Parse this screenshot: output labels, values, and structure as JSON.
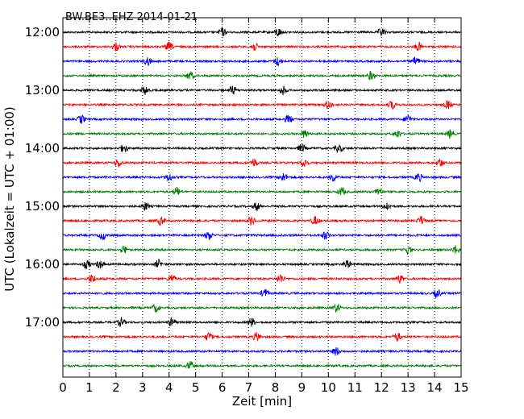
{
  "chart_data": {
    "type": "line",
    "title": "BW.BE3..EHZ 2014-01-21",
    "xlabel": "Zeit  [min]",
    "ylabel": "UTC (Lokalzeit = UTC + 01:00)",
    "xlim": [
      0,
      15
    ],
    "x_ticks": [
      "0",
      "1",
      "2",
      "3",
      "4",
      "5",
      "6",
      "7",
      "8",
      "9",
      "10",
      "11",
      "12",
      "13",
      "14",
      "15"
    ],
    "y_ticks": [
      "12:00",
      "13:00",
      "14:00",
      "15:00",
      "16:00",
      "17:00"
    ],
    "grid_x": true,
    "trace_minutes": 15,
    "colors": [
      "#000000",
      "#ff0000",
      "#0000ff",
      "#008000"
    ],
    "traces": [
      {
        "start": "12:00",
        "color": "#000000",
        "events": [
          6.0,
          8.1,
          12.0
        ]
      },
      {
        "start": "12:15",
        "color": "#ff0000",
        "events": [
          2.0,
          4.0,
          7.2,
          13.4
        ]
      },
      {
        "start": "12:30",
        "color": "#0000ff",
        "events": [
          3.2,
          8.1,
          13.3
        ]
      },
      {
        "start": "12:45",
        "color": "#008000",
        "events": [
          4.8,
          11.6
        ]
      },
      {
        "start": "13:00",
        "color": "#000000",
        "events": [
          3.1,
          6.4,
          8.3
        ]
      },
      {
        "start": "13:15",
        "color": "#ff0000",
        "events": [
          10.0,
          12.4,
          14.5
        ]
      },
      {
        "start": "13:30",
        "color": "#0000ff",
        "events": [
          0.7,
          8.5,
          13.0
        ]
      },
      {
        "start": "13:45",
        "color": "#008000",
        "events": [
          9.1,
          12.6,
          14.6
        ]
      },
      {
        "start": "14:00",
        "color": "#000000",
        "events": [
          2.3,
          9.0,
          10.4
        ]
      },
      {
        "start": "14:15",
        "color": "#ff0000",
        "events": [
          2.1,
          7.2,
          9.1,
          14.2
        ]
      },
      {
        "start": "14:30",
        "color": "#0000ff",
        "events": [
          4.0,
          8.3,
          10.2,
          13.4
        ]
      },
      {
        "start": "14:45",
        "color": "#008000",
        "events": [
          4.3,
          10.5,
          11.9
        ]
      },
      {
        "start": "15:00",
        "color": "#000000",
        "events": [
          3.1,
          7.3,
          12.2
        ]
      },
      {
        "start": "15:15",
        "color": "#ff0000",
        "events": [
          3.7,
          7.1,
          9.5,
          13.5
        ]
      },
      {
        "start": "15:30",
        "color": "#0000ff",
        "events": [
          1.5,
          5.5,
          9.9
        ]
      },
      {
        "start": "15:45",
        "color": "#008000",
        "events": [
          2.3,
          13.0,
          14.8
        ]
      },
      {
        "start": "16:00",
        "color": "#000000",
        "events": [
          0.9,
          1.4,
          3.6,
          10.7
        ]
      },
      {
        "start": "16:15",
        "color": "#ff0000",
        "events": [
          1.1,
          4.1,
          8.2,
          12.7
        ]
      },
      {
        "start": "16:30",
        "color": "#0000ff",
        "events": [
          7.6,
          14.1
        ]
      },
      {
        "start": "16:45",
        "color": "#008000",
        "events": [
          3.5,
          10.3
        ]
      },
      {
        "start": "17:00",
        "color": "#000000",
        "events": [
          2.2,
          4.1,
          7.1
        ]
      },
      {
        "start": "17:15",
        "color": "#ff0000",
        "events": [
          5.5,
          7.3,
          12.6
        ]
      },
      {
        "start": "17:30",
        "color": "#0000ff",
        "events": [
          10.3
        ]
      },
      {
        "start": "17:45",
        "color": "#008000",
        "events": [
          4.8
        ]
      }
    ]
  }
}
